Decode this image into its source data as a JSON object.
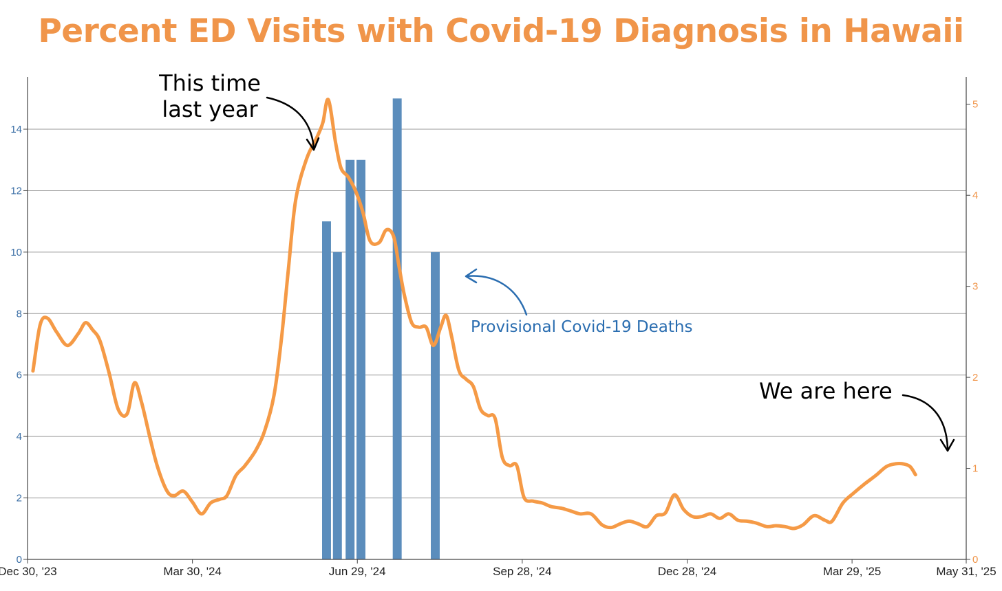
{
  "colors": {
    "title": "#F0954A",
    "line": "#F59A46",
    "bars": "#5B8DBC",
    "left_axis": "#3A6EA5",
    "right_axis": "#F0954A",
    "grid": "#9A9A9A",
    "annotation_blue": "#2A6DB0"
  },
  "chart_data": {
    "type": "bar+line",
    "title": "Percent ED Visits with Covid-19 Diagnosis in Hawaii",
    "x_range": [
      "2023-12-30",
      "2025-05-31"
    ],
    "x_tick_labels": [
      "Dec 30, '23",
      "Mar 30, '24",
      "Jun 29, '24",
      "Sep 28, '24",
      "Dec 28, '24",
      "Mar 29, '25",
      "May 31, '25"
    ],
    "x_tick_days": [
      0,
      91,
      182,
      273,
      364,
      455,
      518
    ],
    "y_left": {
      "range": [
        0,
        15.7
      ],
      "ticks": [
        0,
        2,
        4,
        6,
        8,
        10,
        12,
        14
      ]
    },
    "y_right": {
      "range": [
        0,
        5.3
      ],
      "ticks": [
        0,
        1,
        2,
        3,
        4,
        5
      ]
    },
    "grid": true,
    "series": [
      {
        "name": "Provisional Covid-19 Deaths",
        "type": "bar",
        "axis": "left",
        "bar_width_days": 6,
        "points": [
          {
            "day": 165,
            "value": 11
          },
          {
            "day": 171,
            "value": 10
          },
          {
            "day": 178,
            "value": 13
          },
          {
            "day": 184,
            "value": 13
          },
          {
            "day": 204,
            "value": 15
          },
          {
            "day": 225,
            "value": 10
          }
        ]
      },
      {
        "name": "Percent ED Visits with Covid-19 Diagnosis",
        "type": "line",
        "axis": "right",
        "points": [
          [
            3,
            2.07
          ],
          [
            7,
            2.58
          ],
          [
            11,
            2.65
          ],
          [
            16,
            2.5
          ],
          [
            22,
            2.35
          ],
          [
            28,
            2.48
          ],
          [
            32,
            2.6
          ],
          [
            36,
            2.52
          ],
          [
            40,
            2.4
          ],
          [
            45,
            2.05
          ],
          [
            50,
            1.65
          ],
          [
            55,
            1.6
          ],
          [
            59,
            1.94
          ],
          [
            63,
            1.72
          ],
          [
            68,
            1.3
          ],
          [
            72,
            1.0
          ],
          [
            77,
            0.75
          ],
          [
            81,
            0.7
          ],
          [
            86,
            0.75
          ],
          [
            91,
            0.63
          ],
          [
            96,
            0.5
          ],
          [
            101,
            0.62
          ],
          [
            106,
            0.66
          ],
          [
            110,
            0.7
          ],
          [
            115,
            0.92
          ],
          [
            120,
            1.03
          ],
          [
            126,
            1.2
          ],
          [
            131,
            1.42
          ],
          [
            136,
            1.8
          ],
          [
            140,
            2.4
          ],
          [
            144,
            3.2
          ],
          [
            148,
            3.95
          ],
          [
            154,
            4.4
          ],
          [
            160,
            4.65
          ],
          [
            163,
            4.8
          ],
          [
            166,
            5.05
          ],
          [
            170,
            4.58
          ],
          [
            173,
            4.3
          ],
          [
            177,
            4.2
          ],
          [
            181,
            4.05
          ],
          [
            185,
            3.82
          ],
          [
            189,
            3.5
          ],
          [
            194,
            3.48
          ],
          [
            198,
            3.62
          ],
          [
            202,
            3.55
          ],
          [
            205,
            3.22
          ],
          [
            208,
            2.9
          ],
          [
            212,
            2.6
          ],
          [
            216,
            2.55
          ],
          [
            220,
            2.55
          ],
          [
            224,
            2.35
          ],
          [
            228,
            2.55
          ],
          [
            231,
            2.68
          ],
          [
            234,
            2.45
          ],
          [
            238,
            2.08
          ],
          [
            242,
            1.98
          ],
          [
            246,
            1.9
          ],
          [
            250,
            1.65
          ],
          [
            254,
            1.58
          ],
          [
            258,
            1.55
          ],
          [
            262,
            1.12
          ],
          [
            266,
            1.03
          ],
          [
            270,
            1.03
          ],
          [
            274,
            0.68
          ],
          [
            279,
            0.64
          ],
          [
            284,
            0.62
          ],
          [
            289,
            0.58
          ],
          [
            295,
            0.56
          ],
          [
            300,
            0.53
          ],
          [
            305,
            0.5
          ],
          [
            311,
            0.5
          ],
          [
            317,
            0.38
          ],
          [
            322,
            0.35
          ],
          [
            327,
            0.39
          ],
          [
            332,
            0.42
          ],
          [
            337,
            0.39
          ],
          [
            342,
            0.36
          ],
          [
            347,
            0.48
          ],
          [
            352,
            0.51
          ],
          [
            357,
            0.71
          ],
          [
            362,
            0.55
          ],
          [
            367,
            0.47
          ],
          [
            372,
            0.47
          ],
          [
            377,
            0.5
          ],
          [
            382,
            0.45
          ],
          [
            387,
            0.5
          ],
          [
            392,
            0.43
          ],
          [
            397,
            0.42
          ],
          [
            402,
            0.4
          ],
          [
            408,
            0.36
          ],
          [
            413,
            0.37
          ],
          [
            418,
            0.36
          ],
          [
            423,
            0.34
          ],
          [
            428,
            0.38
          ],
          [
            434,
            0.48
          ],
          [
            440,
            0.43
          ],
          [
            444,
            0.42
          ],
          [
            450,
            0.62
          ],
          [
            456,
            0.73
          ],
          [
            462,
            0.83
          ],
          [
            468,
            0.92
          ],
          [
            474,
            1.02
          ],
          [
            479,
            1.05
          ],
          [
            483,
            1.05
          ],
          [
            487,
            1.02
          ],
          [
            490,
            0.93
          ]
        ]
      }
    ],
    "annotations": [
      {
        "text_lines": [
          "This time",
          "last year"
        ]
      },
      {
        "text": "Provisional Covid-19 Deaths"
      },
      {
        "text": "We are here"
      }
    ]
  }
}
